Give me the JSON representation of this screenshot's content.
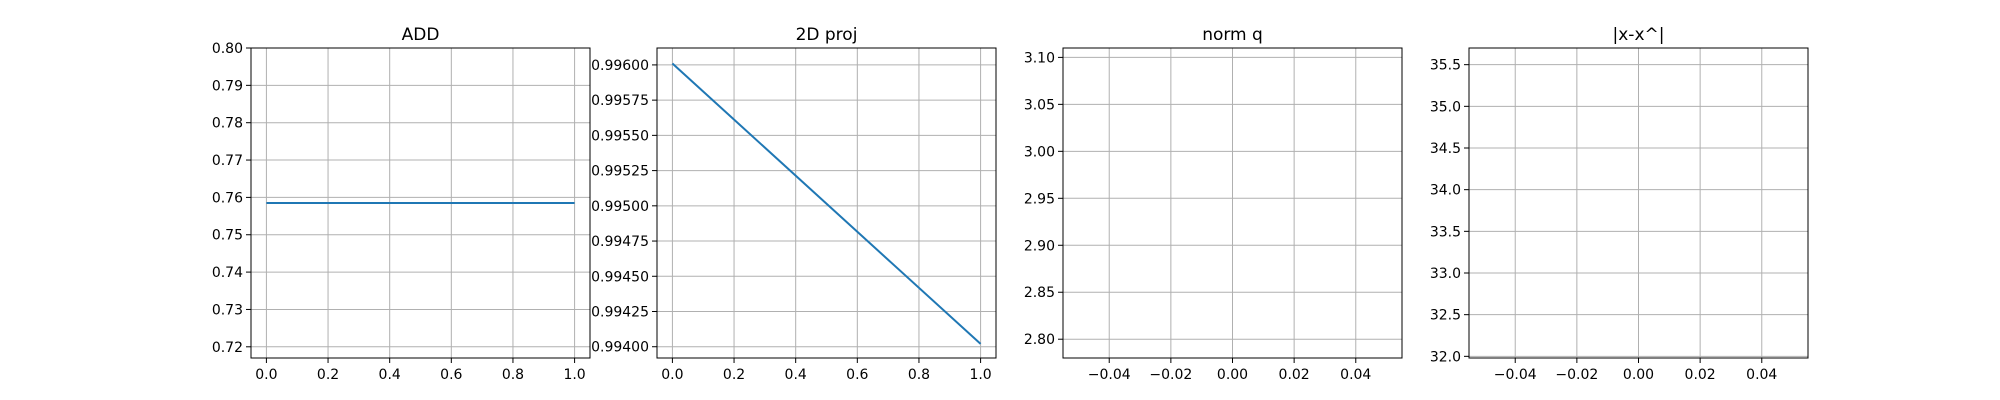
{
  "figure": {
    "background": "#ffffff",
    "line_color": "#1f77b4",
    "grid_color": "#b0b0b0"
  },
  "chart_data": [
    {
      "type": "line",
      "title": "ADD",
      "xlabel": "",
      "ylabel": "",
      "grid": true,
      "xlim": [
        -0.05,
        1.05
      ],
      "ylim": [
        0.717,
        0.8
      ],
      "xticks": [
        0.0,
        0.2,
        0.4,
        0.6,
        0.8,
        1.0
      ],
      "xtick_labels": [
        "0.0",
        "0.2",
        "0.4",
        "0.6",
        "0.8",
        "1.0"
      ],
      "yticks": [
        0.72,
        0.73,
        0.74,
        0.75,
        0.76,
        0.77,
        0.78,
        0.79,
        0.8
      ],
      "ytick_labels": [
        "0.72",
        "0.73",
        "0.74",
        "0.75",
        "0.76",
        "0.77",
        "0.78",
        "0.79",
        "0.80"
      ],
      "series": [
        {
          "x": [
            0.0,
            1.0
          ],
          "y": [
            0.7585,
            0.7585
          ]
        }
      ]
    },
    {
      "type": "line",
      "title": "2D proj",
      "xlabel": "",
      "ylabel": "",
      "grid": true,
      "xlim": [
        -0.05,
        1.05
      ],
      "ylim": [
        0.99392,
        0.99612
      ],
      "xticks": [
        0.0,
        0.2,
        0.4,
        0.6,
        0.8,
        1.0
      ],
      "xtick_labels": [
        "0.0",
        "0.2",
        "0.4",
        "0.6",
        "0.8",
        "1.0"
      ],
      "yticks": [
        0.994,
        0.99425,
        0.9945,
        0.99475,
        0.995,
        0.99525,
        0.9955,
        0.99575,
        0.996
      ],
      "ytick_labels": [
        "0.99400",
        "0.99425",
        "0.99450",
        "0.99475",
        "0.99500",
        "0.99525",
        "0.99550",
        "0.99575",
        "0.99600"
      ],
      "series": [
        {
          "x": [
            0.0,
            1.0
          ],
          "y": [
            0.99601,
            0.99402
          ]
        }
      ]
    },
    {
      "type": "line",
      "title": "norm q",
      "xlabel": "",
      "ylabel": "",
      "grid": true,
      "xlim": [
        -0.055,
        0.055
      ],
      "ylim": [
        2.78,
        3.11
      ],
      "xticks": [
        -0.04,
        -0.02,
        0.0,
        0.02,
        0.04
      ],
      "xtick_labels": [
        "−0.04",
        "−0.02",
        "0.00",
        "0.02",
        "0.04"
      ],
      "yticks": [
        2.8,
        2.85,
        2.9,
        2.95,
        3.0,
        3.05,
        3.1
      ],
      "ytick_labels": [
        "2.80",
        "2.85",
        "2.90",
        "2.95",
        "3.00",
        "3.05",
        "3.10"
      ],
      "series": []
    },
    {
      "type": "line",
      "title": "|x-x^|",
      "xlabel": "",
      "ylabel": "",
      "grid": true,
      "xlim": [
        -0.055,
        0.055
      ],
      "ylim": [
        31.98,
        35.7
      ],
      "xticks": [
        -0.04,
        -0.02,
        0.0,
        0.02,
        0.04
      ],
      "xtick_labels": [
        "−0.04",
        "−0.02",
        "0.00",
        "0.02",
        "0.04"
      ],
      "yticks": [
        32.0,
        32.5,
        33.0,
        33.5,
        34.0,
        34.5,
        35.0,
        35.5
      ],
      "ytick_labels": [
        "32.0",
        "32.5",
        "33.0",
        "33.5",
        "34.0",
        "34.5",
        "35.0",
        "35.5"
      ],
      "series": []
    }
  ]
}
